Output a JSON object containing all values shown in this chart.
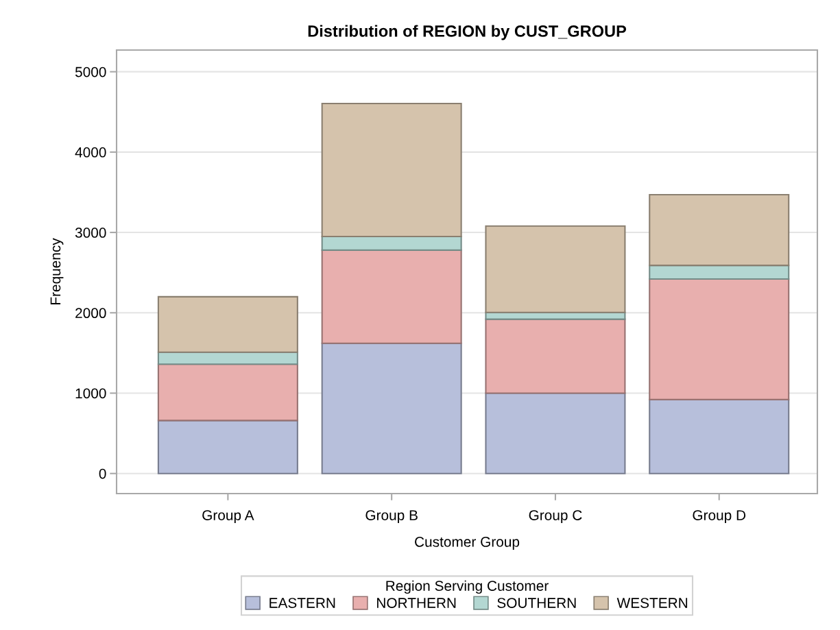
{
  "chart_data": {
    "type": "bar",
    "title": "Distribution of REGION by CUST_GROUP",
    "xlabel": "Customer Group",
    "ylabel": "Frequency",
    "legend_title": "Region Serving Customer",
    "categories": [
      "Group A",
      "Group B",
      "Group C",
      "Group D"
    ],
    "stacked": true,
    "series": [
      {
        "name": "EASTERN",
        "color": "#b7bfdb",
        "values": [
          660,
          1620,
          1000,
          920
        ]
      },
      {
        "name": "NORTHERN",
        "color": "#e8afae",
        "values": [
          700,
          1160,
          920,
          1500
        ]
      },
      {
        "name": "SOUTHERN",
        "color": "#b3d7d2",
        "values": [
          150,
          170,
          85,
          170
        ]
      },
      {
        "name": "WESTERN",
        "color": "#d5c3ac",
        "values": [
          690,
          1655,
          1075,
          880
        ]
      }
    ],
    "ylim": [
      -250,
      5270
    ],
    "yticks": [
      0,
      1000,
      2000,
      3000,
      4000,
      5000
    ],
    "grid": "y",
    "legend": "bottom"
  }
}
